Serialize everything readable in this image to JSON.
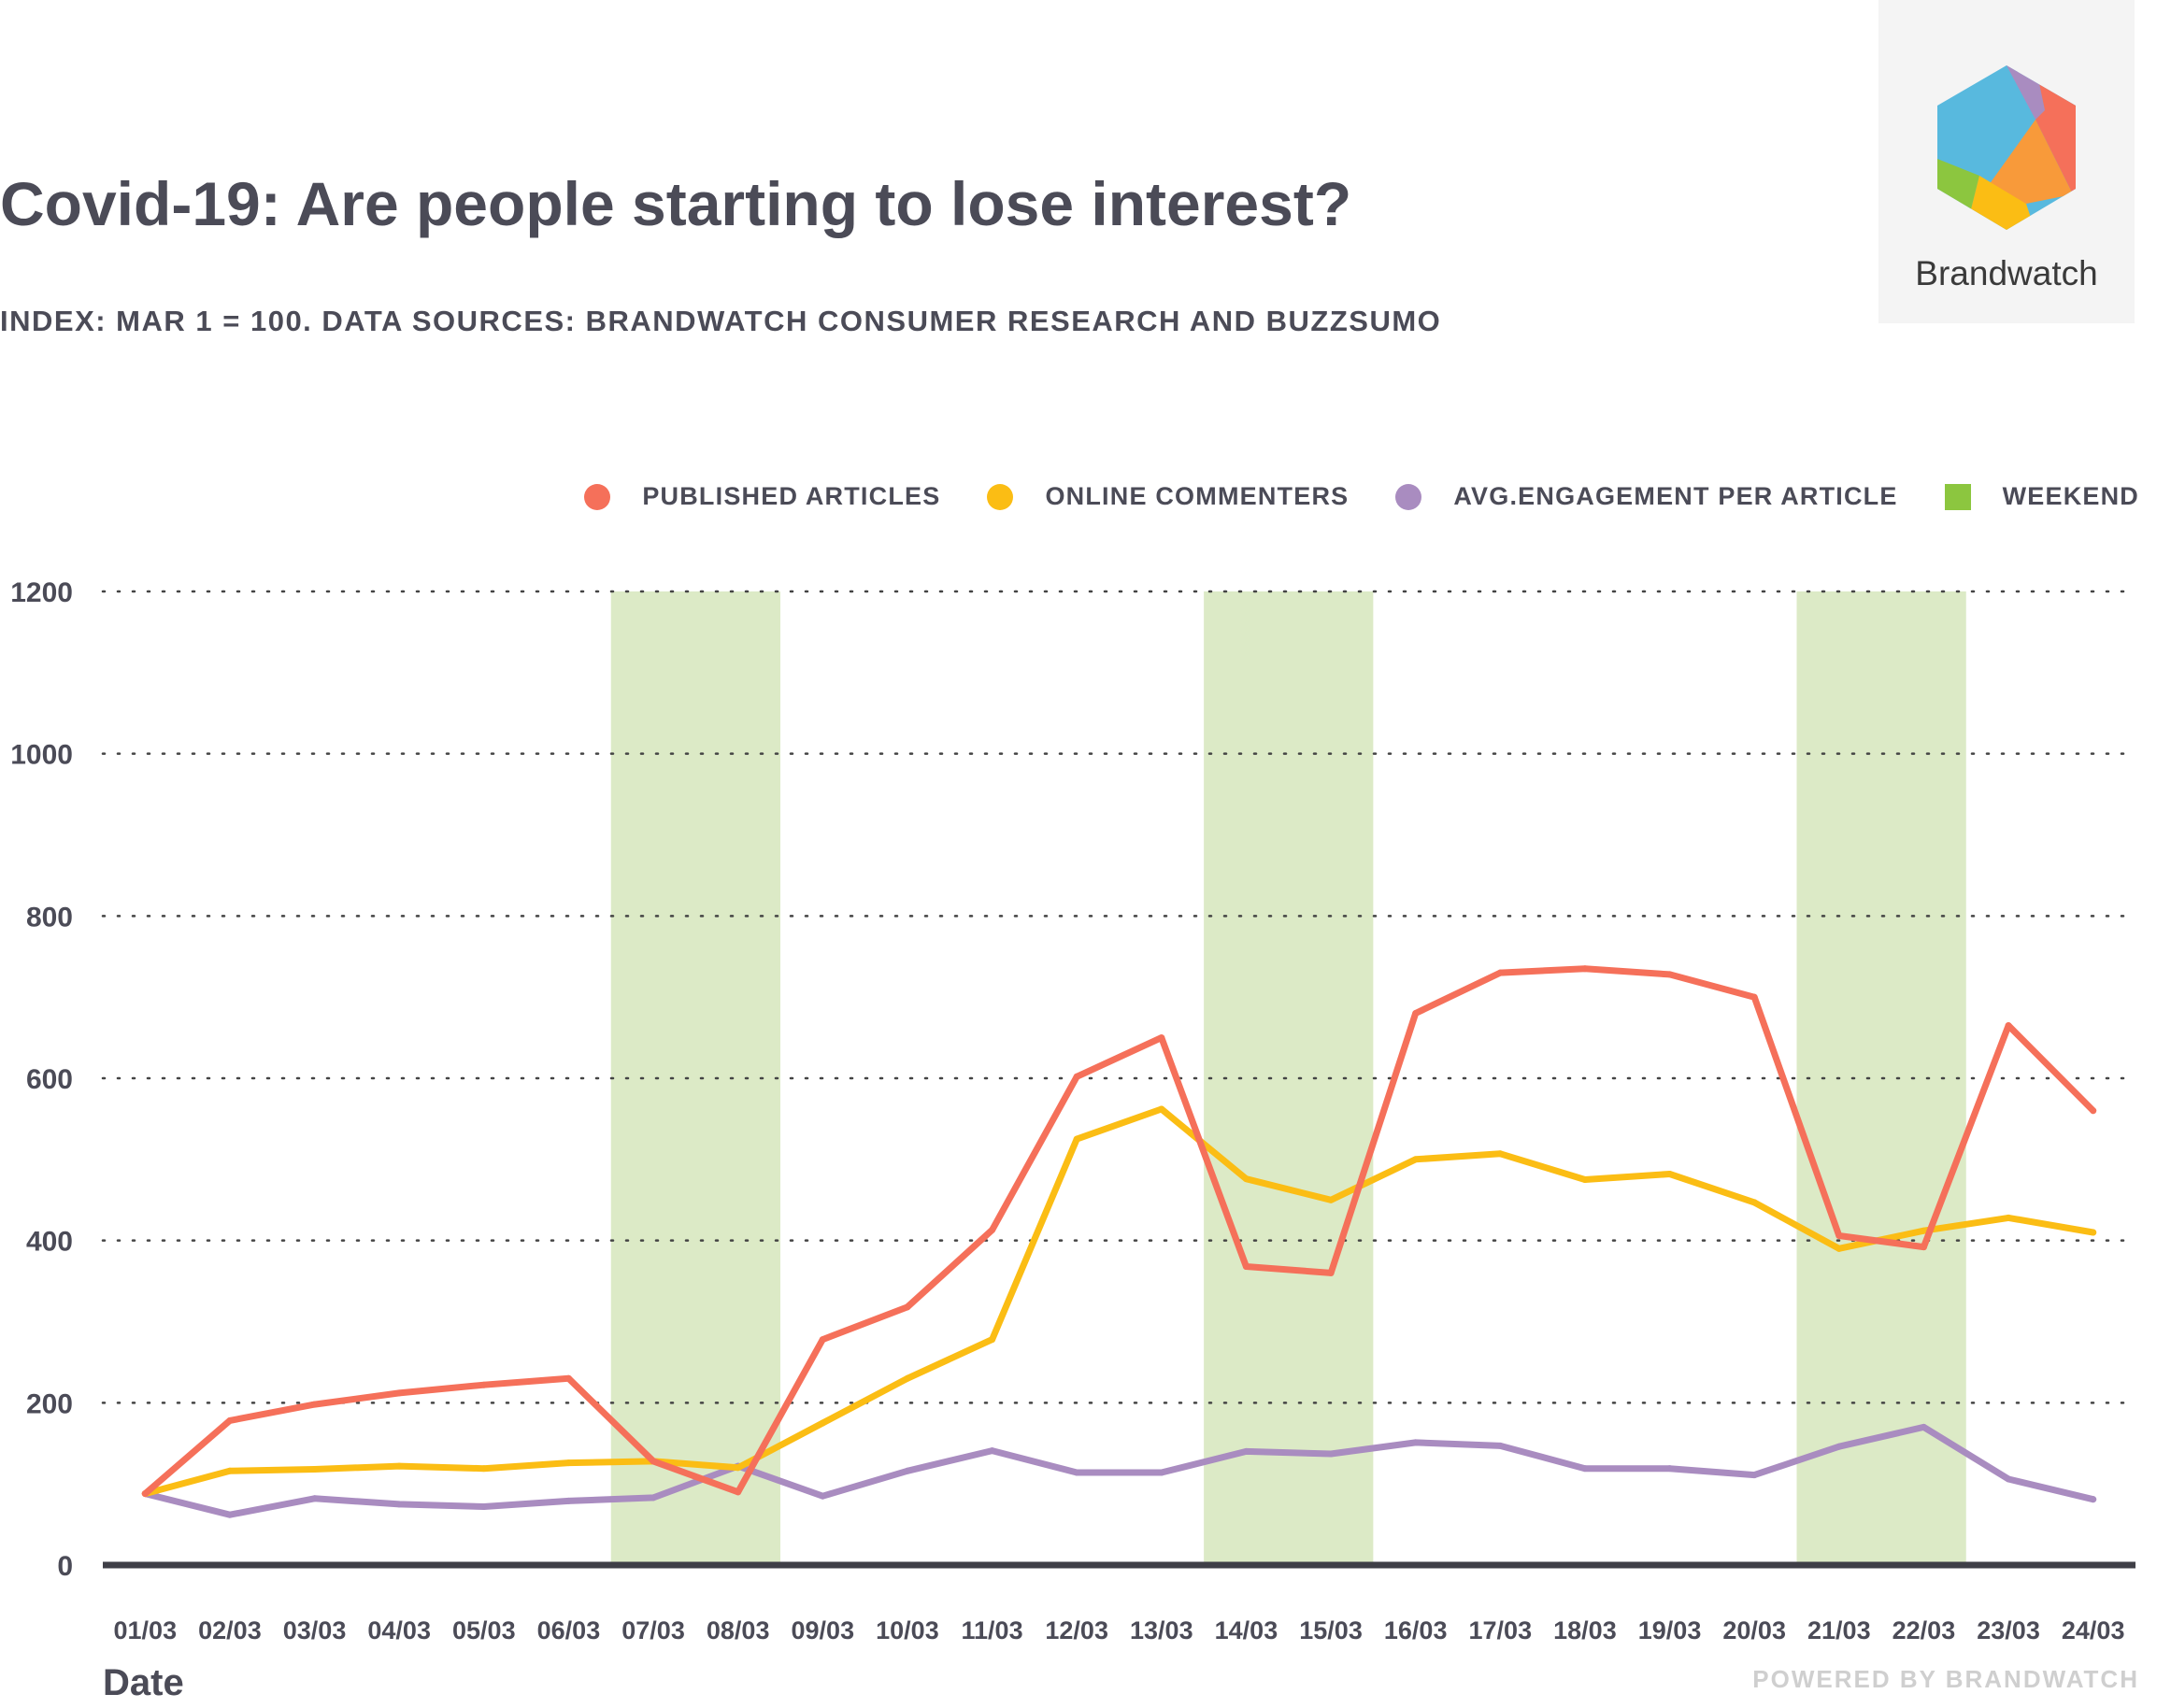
{
  "header": {
    "title": "Covid-19: Are people starting to lose interest?",
    "subtitle": "INDEX: MAR 1 = 100. DATA SOURCES: BRANDWATCH CONSUMER RESEARCH AND BUZZSUMO"
  },
  "logo": {
    "text": "Brandwatch"
  },
  "footer": {
    "text": "POWERED BY BRANDWATCH"
  },
  "colors": {
    "published": "#f5705a",
    "commenters": "#fbbd14",
    "engagement": "#a98cc0",
    "weekend": "#dceac6",
    "weekend_legend": "#8cc63f",
    "axis": "#3f3f47"
  },
  "chart_data": {
    "type": "line",
    "title": "Covid-19: Are people starting to lose interest?",
    "xlabel": "Date",
    "ylabel": "",
    "ylim": [
      0,
      1200
    ],
    "yticks": [
      "0",
      "200",
      "400",
      "600",
      "800",
      "1000",
      "1200"
    ],
    "grid": "dotted-horizontal",
    "legend_position": "top-right",
    "categories": [
      "01/03",
      "02/03",
      "03/03",
      "04/03",
      "05/03",
      "06/03",
      "07/03",
      "08/03",
      "09/03",
      "10/03",
      "11/03",
      "12/03",
      "13/03",
      "14/03",
      "15/03",
      "16/03",
      "17/03",
      "18/03",
      "19/03",
      "20/03",
      "21/03",
      "22/03",
      "23/03",
      "24/03"
    ],
    "series": [
      {
        "name": "PUBLISHED ARTICLES",
        "color_key": "published",
        "values": [
          88,
          178,
          198,
          212,
          222,
          230,
          128,
          90,
          278,
          318,
          413,
          602,
          650,
          368,
          360,
          680,
          730,
          735,
          728,
          700,
          406,
          392,
          665,
          560
        ]
      },
      {
        "name": "ONLINE COMMENTERS",
        "color_key": "commenters",
        "values": [
          88,
          116,
          118,
          122,
          119,
          126,
          128,
          120,
          175,
          230,
          278,
          525,
          562,
          476,
          450,
          500,
          507,
          475,
          482,
          447,
          390,
          412,
          428,
          410
        ]
      },
      {
        "name": "AVG.ENGAGEMENT PER ARTICLE",
        "color_key": "engagement",
        "values": [
          88,
          62,
          82,
          75,
          72,
          79,
          83,
          122,
          85,
          116,
          141,
          114,
          114,
          140,
          137,
          151,
          147,
          119,
          119,
          111,
          146,
          170,
          106,
          81
        ]
      }
    ],
    "weekend_label": "WEEKEND",
    "weekend_spans": [
      [
        "07/03",
        "08/03"
      ],
      [
        "14/03",
        "15/03"
      ],
      [
        "21/03",
        "22/03"
      ]
    ]
  }
}
